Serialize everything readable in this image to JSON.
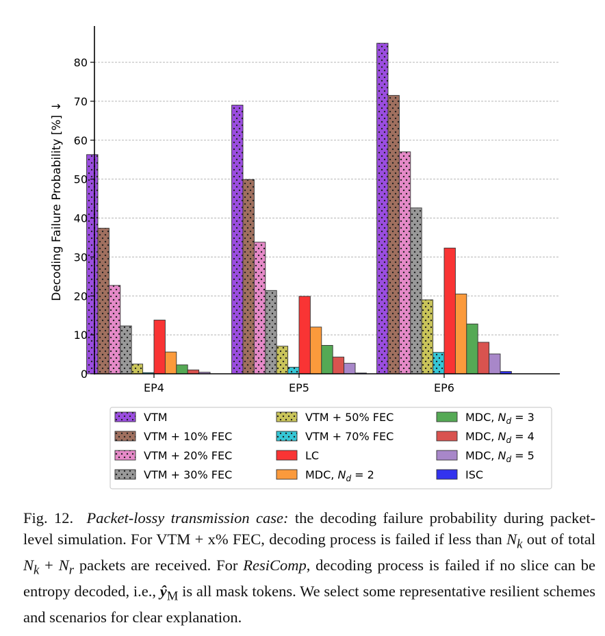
{
  "chart_data": {
    "type": "bar",
    "ylabel": "Decoding Failure Probability [%] ↓",
    "xlabel": "",
    "title": "",
    "ylim": [
      0,
      88
    ],
    "yticks": [
      0,
      10,
      20,
      30,
      40,
      50,
      60,
      70,
      80
    ],
    "grid": "horizontal dashed",
    "legend_placement": "bottom",
    "categories": [
      "EP4",
      "EP5",
      "EP6"
    ],
    "series": [
      {
        "name": "VTM",
        "color": "#9b4de0",
        "hatch": "dots",
        "values": [
          56.3,
          69.0,
          84.9
        ]
      },
      {
        "name": "VTM + 10% FEC",
        "color": "#a0705f",
        "hatch": "dots",
        "values": [
          37.4,
          49.9,
          71.5
        ]
      },
      {
        "name": "VTM + 20% FEC",
        "color": "#e58ac8",
        "hatch": "dots",
        "values": [
          22.7,
          33.8,
          57.0
        ]
      },
      {
        "name": "VTM + 30% FEC",
        "color": "#999999",
        "hatch": "dots",
        "values": [
          12.3,
          21.4,
          42.6
        ]
      },
      {
        "name": "VTM + 50% FEC",
        "color": "#c9c45a",
        "hatch": "dots",
        "values": [
          2.5,
          7.1,
          19.0
        ]
      },
      {
        "name": "VTM + 70% FEC",
        "color": "#36c7d6",
        "hatch": "dots",
        "values": [
          0.3,
          1.7,
          5.5
        ]
      },
      {
        "name": "LC",
        "color": "#f93434",
        "hatch": "none",
        "values": [
          13.8,
          19.9,
          32.3
        ]
      },
      {
        "name": "MDC, ",
        "name_math": "N_d = 2",
        "color": "#fb9a3c",
        "hatch": "none",
        "values": [
          5.6,
          12.0,
          20.5
        ]
      },
      {
        "name": "MDC, ",
        "name_math": "N_d = 3",
        "color": "#55a955",
        "hatch": "none",
        "values": [
          2.3,
          7.3,
          12.8
        ]
      },
      {
        "name": "MDC, ",
        "name_math": "N_d = 4",
        "color": "#d9534f",
        "hatch": "none",
        "values": [
          1.0,
          4.3,
          8.1
        ]
      },
      {
        "name": "MDC, ",
        "name_math": "N_d = 5",
        "color": "#a887c9",
        "hatch": "none",
        "values": [
          0.4,
          2.7,
          5.1
        ]
      },
      {
        "name": "ISC",
        "color": "#3333ee",
        "hatch": "none",
        "values": [
          0.0,
          0.2,
          0.6
        ]
      }
    ]
  },
  "caption": {
    "fig_label": "Fig. 12.",
    "title_italic": "Packet-lossy transmission case:",
    "part1": " the decoding failure probability during packet-level simulation. For VTM + x% FEC, decoding process is failed if less than ",
    "math_nk": "N",
    "math_nk_sub": "k",
    "part2": " out of total ",
    "math_sum": "N",
    "math_sum_sub1": "k",
    "math_plus": " + ",
    "math_sum2": "N",
    "math_sum_sub2": "r",
    "part3": " packets are received. For ",
    "resicomp": "ResiComp",
    "part4": ", decoding process is failed if no slice can be entropy decoded, i.e., ",
    "math_y": "ŷ",
    "math_y_sub": "M",
    "part5": " is all mask tokens. We select some representative resilient schemes and scenarios for clear explanation."
  }
}
